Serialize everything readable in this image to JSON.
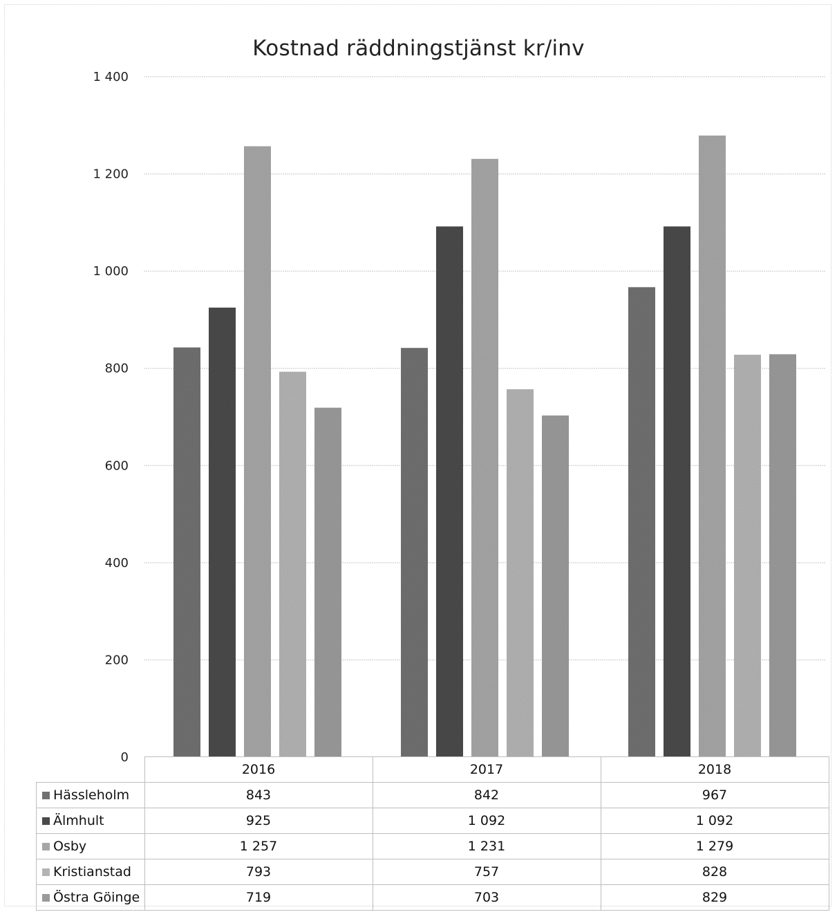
{
  "chart_data": {
    "type": "bar",
    "title": "Kostnad räddningstjänst kr/inv",
    "categories": [
      "2016",
      "2017",
      "2018"
    ],
    "series": [
      {
        "name": "Hässleholm",
        "values": [
          843,
          842,
          967
        ],
        "labels": [
          "843",
          "842",
          "967"
        ],
        "color": "#707070"
      },
      {
        "name": "Älmhult",
        "values": [
          925,
          1092,
          1092
        ],
        "labels": [
          "925",
          "1 092",
          "1 092"
        ],
        "color": "#4a4a4a"
      },
      {
        "name": "Osby",
        "values": [
          1257,
          1231,
          1279
        ],
        "labels": [
          "1 257",
          "1 231",
          "1 279"
        ],
        "color": "#a6a6a6"
      },
      {
        "name": "Kristianstad",
        "values": [
          793,
          757,
          828
        ],
        "labels": [
          "793",
          "757",
          "828"
        ],
        "color": "#b3b3b3"
      },
      {
        "name": "Östra Göinge",
        "values": [
          719,
          703,
          829
        ],
        "labels": [
          "719",
          "703",
          "829"
        ],
        "color": "#9a9a9a"
      }
    ],
    "ylim": [
      0,
      1400
    ],
    "yticks": [
      0,
      200,
      400,
      600,
      800,
      1000,
      1200,
      1400
    ],
    "ytick_labels": [
      "0",
      "200",
      "400",
      "600",
      "800",
      "1 000",
      "1 200",
      "1 400"
    ],
    "grid": true,
    "legend": "data table below chart"
  }
}
